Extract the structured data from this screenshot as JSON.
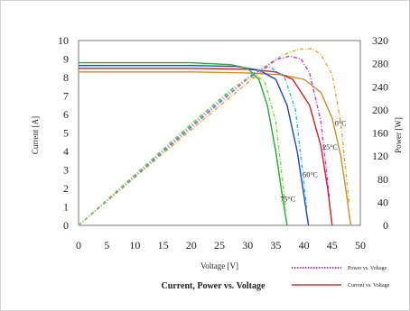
{
  "chart_data": {
    "type": "line",
    "title": "Current, Power vs. Voltage",
    "xlabel": "Voltage [V]",
    "ylabel_left": "Current [A]",
    "ylabel_right": "Power [W]",
    "xlim": [
      0,
      50
    ],
    "ylim_left": [
      0,
      10
    ],
    "ylim_right": [
      0,
      320
    ],
    "x_ticks": [
      "0",
      "5",
      "10",
      "15",
      "20",
      "25",
      "30",
      "35",
      "40",
      "45",
      "50"
    ],
    "y_left_ticks": [
      "0",
      "1",
      "2",
      "3",
      "4",
      "5",
      "6",
      "7",
      "8",
      "9",
      "10"
    ],
    "y_right_ticks": [
      "0",
      "40",
      "80",
      "120",
      "160",
      "200",
      "240",
      "280",
      "320"
    ],
    "grid": false,
    "legend": [
      {
        "name": "Power vs. Voltage",
        "style": "dotted",
        "color": "#cc33cc"
      },
      {
        "name": "Current vs. Voltage",
        "style": "solid",
        "color": "#cc3333"
      }
    ],
    "temperature_labels": [
      {
        "text": "0°C",
        "x": 45.5,
        "y": 5.4
      },
      {
        "text": "25°C",
        "x": 43.3,
        "y": 4.1
      },
      {
        "text": "50°C",
        "x": 39.8,
        "y": 2.6
      },
      {
        "text": "75°C",
        "x": 35.8,
        "y": 1.3
      }
    ],
    "series": [
      {
        "kind": "current",
        "temp": "0°C",
        "color": "#d08a2a",
        "axis": "left",
        "x": [
          0,
          20,
          30,
          36,
          40,
          43,
          45,
          46.5,
          47.5,
          48.3
        ],
        "y": [
          8.3,
          8.3,
          8.25,
          8.15,
          7.9,
          7.2,
          5.8,
          3.8,
          1.8,
          0
        ]
      },
      {
        "kind": "current",
        "temp": "25°C",
        "color": "#cc2222",
        "axis": "left",
        "x": [
          0,
          20,
          30,
          35,
          38,
          41,
          43,
          44.2,
          45
        ],
        "y": [
          8.5,
          8.5,
          8.45,
          8.3,
          7.9,
          6.5,
          4.3,
          2.0,
          0
        ]
      },
      {
        "kind": "current",
        "temp": "50°C",
        "color": "#2244cc",
        "axis": "left",
        "x": [
          0,
          20,
          28,
          32,
          35,
          37,
          38.8,
          40,
          40.8
        ],
        "y": [
          8.65,
          8.65,
          8.6,
          8.4,
          7.9,
          6.5,
          4.0,
          1.6,
          0
        ]
      },
      {
        "kind": "current",
        "temp": "75°C",
        "color": "#22aa33",
        "axis": "left",
        "x": [
          0,
          20,
          27,
          30,
          32,
          33.5,
          35,
          36.2,
          37
        ],
        "y": [
          8.8,
          8.8,
          8.7,
          8.5,
          7.9,
          6.5,
          4.0,
          1.5,
          0
        ]
      },
      {
        "kind": "power",
        "temp": "0°C",
        "color": "#d0b02a",
        "axis": "right",
        "x": [
          0,
          10,
          20,
          30,
          36,
          39,
          41.5,
          43,
          45,
          46.5,
          48
        ],
        "y": [
          0,
          83,
          166,
          247,
          294,
          305,
          306,
          296,
          261,
          180,
          40
        ]
      },
      {
        "kind": "power",
        "temp": "25°C",
        "color": "#cc33cc",
        "axis": "right",
        "x": [
          0,
          10,
          20,
          30,
          35,
          37.5,
          39.5,
          41,
          43,
          44.5
        ],
        "y": [
          0,
          85,
          170,
          254,
          287,
          293,
          288,
          264,
          180,
          50
        ]
      },
      {
        "kind": "power",
        "temp": "50°C",
        "color": "#33bbcc",
        "axis": "right",
        "x": [
          0,
          10,
          20,
          28,
          32,
          34,
          36.5,
          38.5,
          40.5
        ],
        "y": [
          0,
          86,
          173,
          241,
          270,
          274,
          258,
          200,
          30
        ]
      },
      {
        "kind": "power",
        "temp": "75°C",
        "color": "#88cc44",
        "axis": "right",
        "x": [
          0,
          10,
          20,
          27,
          30,
          31.5,
          33,
          35,
          36.8
        ],
        "y": [
          0,
          88,
          176,
          235,
          255,
          258,
          250,
          180,
          25
        ]
      }
    ]
  }
}
